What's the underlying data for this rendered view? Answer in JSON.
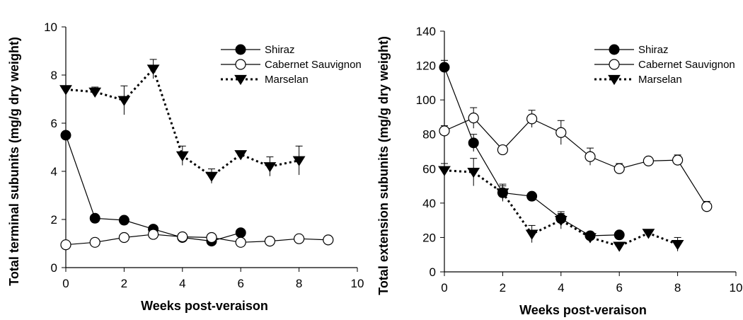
{
  "chart_data": [
    {
      "type": "line",
      "xlabel": "Weeks post-veraison",
      "ylabel": "Total terminal subunits (mg/g dry weight)",
      "xlim": [
        0,
        10
      ],
      "ylim": [
        0,
        10
      ],
      "xticks": [
        0,
        2,
        4,
        6,
        8,
        10
      ],
      "yticks": [
        0,
        2,
        4,
        6,
        8,
        10
      ],
      "grid": false,
      "legend_position": "top-right",
      "series": [
        {
          "name": "Shiraz",
          "marker": "filled-circle",
          "line": "solid",
          "x": [
            0,
            1,
            2,
            3,
            4,
            5,
            6
          ],
          "y": [
            5.5,
            2.05,
            1.97,
            1.6,
            1.25,
            1.1,
            1.45
          ],
          "err": [
            0.15,
            0.1,
            0.1,
            0.1,
            0.1,
            0.1,
            0.1
          ]
        },
        {
          "name": "Cabernet Sauvignon",
          "marker": "open-circle",
          "line": "solid",
          "x": [
            0,
            1,
            2,
            3,
            4,
            5,
            6,
            7,
            8,
            9
          ],
          "y": [
            0.95,
            1.05,
            1.25,
            1.38,
            1.28,
            1.25,
            1.05,
            1.1,
            1.2,
            1.15
          ],
          "err": [
            0.05,
            0.05,
            0.05,
            0.05,
            0.05,
            0.05,
            0.05,
            0.05,
            0.05,
            0.05
          ]
        },
        {
          "name": "Marselan",
          "marker": "filled-triangle-down",
          "line": "dotted",
          "x": [
            0,
            1,
            2,
            3,
            4,
            5,
            6,
            7,
            8
          ],
          "y": [
            7.4,
            7.3,
            6.95,
            8.25,
            4.65,
            3.8,
            4.7,
            4.2,
            4.45
          ],
          "err": [
            0.1,
            0.2,
            0.6,
            0.4,
            0.4,
            0.3,
            0.15,
            0.4,
            0.6
          ]
        }
      ]
    },
    {
      "type": "line",
      "xlabel": "Weeks post-veraison",
      "ylabel": "Total extension subunits (mg/g dry weight)",
      "xlim": [
        0,
        10
      ],
      "ylim": [
        0,
        140
      ],
      "xticks": [
        0,
        2,
        4,
        6,
        8,
        10
      ],
      "yticks": [
        0,
        20,
        40,
        60,
        80,
        100,
        120,
        140
      ],
      "grid": false,
      "legend_position": "top-right",
      "series": [
        {
          "name": "Shiraz",
          "marker": "filled-circle",
          "line": "solid",
          "x": [
            0,
            1,
            2,
            3,
            4,
            5,
            6
          ],
          "y": [
            119,
            75,
            46,
            44,
            31,
            21,
            21.5
          ],
          "err": [
            4,
            5,
            5,
            2,
            3,
            1,
            1
          ]
        },
        {
          "name": "Cabernet Sauvignon",
          "marker": "open-circle",
          "line": "solid",
          "x": [
            0,
            1,
            2,
            3,
            4,
            5,
            6,
            7,
            8,
            9
          ],
          "y": [
            82,
            89.5,
            71,
            89,
            81,
            67,
            60,
            64.5,
            65,
            38
          ],
          "err": [
            3,
            6,
            2,
            5,
            7,
            5,
            3,
            2,
            3,
            3
          ]
        },
        {
          "name": "Marselan",
          "marker": "filled-triangle-down",
          "line": "dotted",
          "x": [
            0,
            1,
            2,
            3,
            4,
            5,
            6,
            7,
            8
          ],
          "y": [
            59,
            58,
            46,
            22,
            30,
            20,
            15,
            22.5,
            16
          ],
          "err": [
            4,
            8,
            4,
            5,
            5,
            2,
            2,
            2,
            4
          ]
        }
      ]
    }
  ]
}
